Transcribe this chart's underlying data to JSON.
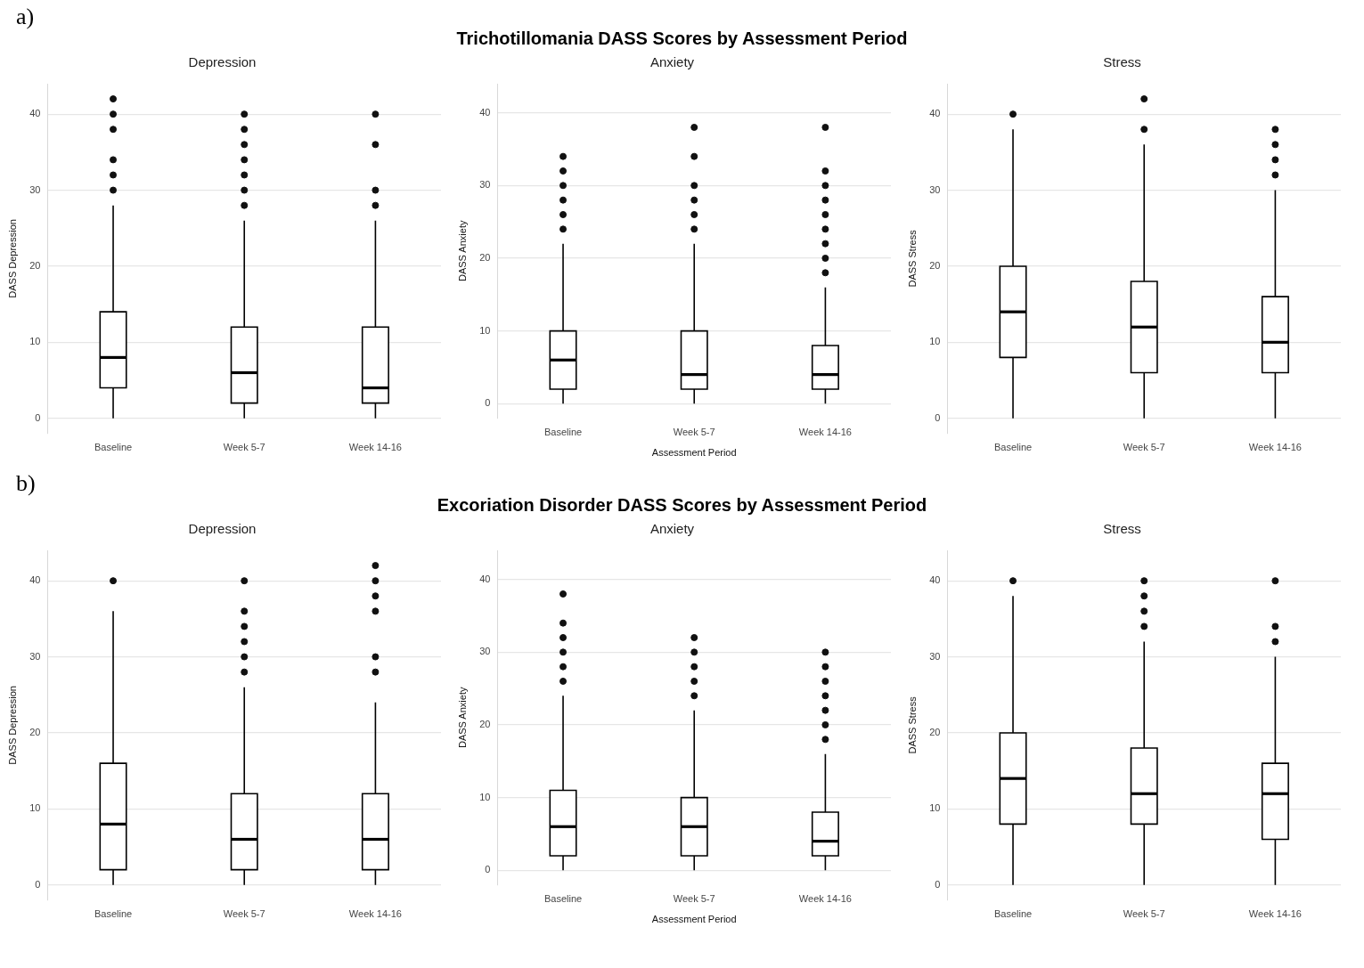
{
  "chart_data": [
    {
      "type": "box",
      "title": "Depression",
      "xlabel": null,
      "ylabel": "DASS Depression",
      "annotations": [
        "a)",
        "Trichotillomania DASS Scores by Assessment Period"
      ],
      "categories": [
        "Baseline",
        "Week 5-7",
        "Week 14-16"
      ],
      "ylim": [
        -2,
        44
      ],
      "yticks": [
        0,
        10,
        20,
        30,
        40
      ],
      "grid": "y",
      "boxes": [
        {
          "low": 0,
          "q1": 4,
          "median": 8,
          "q3": 14,
          "high": 28,
          "outliers": [
            30,
            32,
            34,
            38,
            40,
            42
          ]
        },
        {
          "low": 0,
          "q1": 2,
          "median": 6,
          "q3": 12,
          "high": 26,
          "outliers": [
            28,
            30,
            32,
            34,
            36,
            38,
            40
          ]
        },
        {
          "low": 0,
          "q1": 2,
          "median": 4,
          "q3": 12,
          "high": 26,
          "outliers": [
            28,
            30,
            36,
            40
          ]
        }
      ]
    },
    {
      "type": "box",
      "title": "Anxiety",
      "xlabel": "Assessment Period",
      "ylabel": "DASS Anxiety",
      "categories": [
        "Baseline",
        "Week 5-7",
        "Week 14-16"
      ],
      "ylim": [
        -2,
        44
      ],
      "yticks": [
        0,
        10,
        20,
        30,
        40
      ],
      "grid": "y",
      "boxes": [
        {
          "low": 0,
          "q1": 2,
          "median": 6,
          "q3": 10,
          "high": 22,
          "outliers": [
            24,
            26,
            28,
            30,
            32,
            34
          ]
        },
        {
          "low": 0,
          "q1": 2,
          "median": 4,
          "q3": 10,
          "high": 22,
          "outliers": [
            24,
            26,
            28,
            30,
            34,
            38
          ]
        },
        {
          "low": 0,
          "q1": 2,
          "median": 4,
          "q3": 8,
          "high": 16,
          "outliers": [
            18,
            20,
            22,
            24,
            26,
            28,
            30,
            32,
            38
          ]
        }
      ]
    },
    {
      "type": "box",
      "title": "Stress",
      "xlabel": null,
      "ylabel": "DASS Stress",
      "categories": [
        "Baseline",
        "Week 5-7",
        "Week 14-16"
      ],
      "ylim": [
        -2,
        44
      ],
      "yticks": [
        0,
        10,
        20,
        30,
        40
      ],
      "grid": "y",
      "boxes": [
        {
          "low": 0,
          "q1": 8,
          "median": 14,
          "q3": 20,
          "high": 38,
          "outliers": [
            40
          ]
        },
        {
          "low": 0,
          "q1": 6,
          "median": 12,
          "q3": 18,
          "high": 36,
          "outliers": [
            38,
            42
          ]
        },
        {
          "low": 0,
          "q1": 6,
          "median": 10,
          "q3": 16,
          "high": 30,
          "outliers": [
            32,
            34,
            36,
            38
          ]
        }
      ]
    },
    {
      "type": "box",
      "title": "Depression",
      "xlabel": null,
      "ylabel": "DASS Depression",
      "annotations": [
        "b)",
        "Excoriation Disorder DASS Scores by Assessment Period"
      ],
      "categories": [
        "Baseline",
        "Week 5-7",
        "Week 14-16"
      ],
      "ylim": [
        -2,
        44
      ],
      "yticks": [
        0,
        10,
        20,
        30,
        40
      ],
      "grid": "y",
      "boxes": [
        {
          "low": 0,
          "q1": 2,
          "median": 8,
          "q3": 16,
          "high": 36,
          "outliers": [
            40
          ]
        },
        {
          "low": 0,
          "q1": 2,
          "median": 6,
          "q3": 12,
          "high": 26,
          "outliers": [
            28,
            30,
            32,
            34,
            36,
            40
          ]
        },
        {
          "low": 0,
          "q1": 2,
          "median": 6,
          "q3": 12,
          "high": 24,
          "outliers": [
            28,
            30,
            36,
            38,
            40,
            42
          ]
        }
      ]
    },
    {
      "type": "box",
      "title": "Anxiety",
      "xlabel": "Assessment Period",
      "ylabel": "DASS Anxiety",
      "categories": [
        "Baseline",
        "Week 5-7",
        "Week 14-16"
      ],
      "ylim": [
        -2,
        44
      ],
      "yticks": [
        0,
        10,
        20,
        30,
        40
      ],
      "grid": "y",
      "boxes": [
        {
          "low": 0,
          "q1": 2,
          "median": 6,
          "q3": 11,
          "high": 24,
          "outliers": [
            26,
            28,
            30,
            32,
            34,
            38
          ]
        },
        {
          "low": 0,
          "q1": 2,
          "median": 6,
          "q3": 10,
          "high": 22,
          "outliers": [
            24,
            26,
            28,
            30,
            32
          ]
        },
        {
          "low": 0,
          "q1": 2,
          "median": 4,
          "q3": 8,
          "high": 16,
          "outliers": [
            18,
            20,
            22,
            24,
            26,
            28,
            30
          ]
        }
      ]
    },
    {
      "type": "box",
      "title": "Stress",
      "xlabel": null,
      "ylabel": "DASS Stress",
      "categories": [
        "Baseline",
        "Week 5-7",
        "Week 14-16"
      ],
      "ylim": [
        -2,
        44
      ],
      "yticks": [
        0,
        10,
        20,
        30,
        40
      ],
      "grid": "y",
      "boxes": [
        {
          "low": 0,
          "q1": 8,
          "median": 14,
          "q3": 20,
          "high": 38,
          "outliers": [
            40
          ]
        },
        {
          "low": 0,
          "q1": 8,
          "median": 12,
          "q3": 18,
          "high": 32,
          "outliers": [
            34,
            36,
            38,
            40
          ]
        },
        {
          "low": 0,
          "q1": 6,
          "median": 12,
          "q3": 16,
          "high": 30,
          "outliers": [
            32,
            34,
            40
          ]
        }
      ]
    }
  ]
}
